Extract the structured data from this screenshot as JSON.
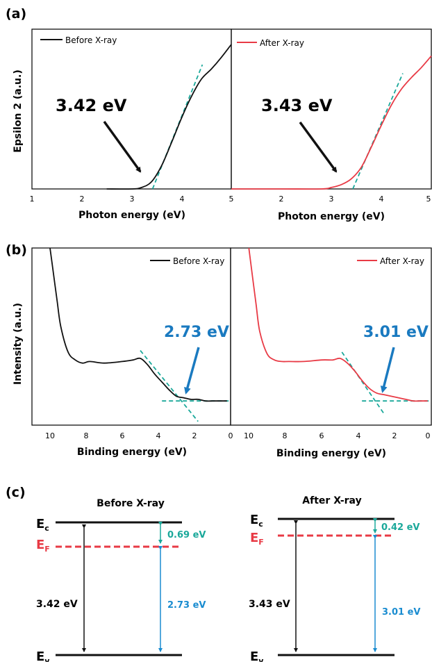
{
  "colors": {
    "before": "#111111",
    "after": "#e83a45",
    "fit_line": "#1aa89a",
    "annot_b": "#1a7ac0",
    "ef_red": "#e83a45",
    "gap_green": "#1aa89a",
    "gap_blue": "#1a8cd0"
  },
  "panels": {
    "a": {
      "label": "(a)",
      "ylabel": "Epsilon 2 (a.u.)",
      "left": {
        "legend": "Before X-ray",
        "xlabel": "Photon energy (eV)",
        "annotation": "3.42 eV",
        "ticks": [
          "1",
          "2",
          "3",
          "4",
          "5"
        ]
      },
      "right": {
        "legend": "After X-ray",
        "xlabel": "Photon energy (eV)",
        "annotation": "3.43 eV",
        "ticks": [
          "2",
          "3",
          "4",
          "5"
        ]
      }
    },
    "b": {
      "label": "(b)",
      "ylabel": "Intensity (a.u.)",
      "left": {
        "legend": "Before X-ray",
        "xlabel": "Binding energy (eV)",
        "annotation": "2.73 eV",
        "ticks": [
          "10",
          "8",
          "6",
          "4",
          "2",
          "0"
        ]
      },
      "right": {
        "legend": "After X-ray",
        "xlabel": "Binding energy (eV)",
        "annotation": "3.01 eV",
        "ticks": [
          "10",
          "8",
          "6",
          "4",
          "2",
          "0"
        ]
      }
    },
    "c": {
      "label": "(c)",
      "before": {
        "title": "Before X-ray",
        "ec": "E",
        "ec_sub": "c",
        "ef": "E",
        "ef_sub": "F",
        "ev": "E",
        "ev_sub": "v",
        "gap": "3.42 eV",
        "ec_ef": "0.69 eV",
        "ef_ev": "2.73 eV"
      },
      "after": {
        "title": "After X-ray",
        "ec": "E",
        "ec_sub": "c",
        "ef": "E",
        "ef_sub": "F",
        "ev": "E",
        "ev_sub": "v",
        "gap": "3.43 eV",
        "ec_ef": "0.42 eV",
        "ef_ev": "3.01 eV"
      }
    }
  },
  "chart_data": [
    {
      "type": "line",
      "panel": "a-left",
      "legend": "Before X-ray",
      "xlabel": "Photon energy (eV)",
      "ylabel": "Epsilon 2 (a.u.)",
      "xlim": [
        1,
        5
      ],
      "ylim": [
        0,
        1
      ],
      "y_ticks_labeled": false,
      "annotation": "3.42 eV",
      "series": [
        {
          "name": "Before X-ray",
          "color": "#111111",
          "x": [
            2.5,
            3.0,
            3.2,
            3.4,
            3.6,
            3.8,
            4.0,
            4.2,
            4.4,
            4.6,
            4.8,
            5.0
          ],
          "y": [
            0.0,
            0.0,
            0.01,
            0.05,
            0.16,
            0.32,
            0.49,
            0.64,
            0.76,
            0.83,
            0.91,
            1.0
          ]
        }
      ],
      "fit_line": {
        "x": [
          3.42,
          4.42
        ],
        "y": [
          0.0,
          0.86
        ]
      }
    },
    {
      "type": "line",
      "panel": "a-right",
      "legend": "After X-ray",
      "xlabel": "Photon energy (eV)",
      "xlim": [
        1,
        5
      ],
      "ylim": [
        0,
        1
      ],
      "annotation": "3.43 eV",
      "series": [
        {
          "name": "After X-ray",
          "color": "#e83a45",
          "x": [
            1.0,
            2.0,
            2.8,
            3.0,
            3.2,
            3.4,
            3.6,
            3.8,
            4.0,
            4.2,
            4.4,
            4.6,
            4.8,
            5.0
          ],
          "y": [
            0.0,
            0.0,
            0.0,
            0.01,
            0.03,
            0.07,
            0.15,
            0.29,
            0.44,
            0.58,
            0.69,
            0.77,
            0.84,
            0.92
          ]
        }
      ],
      "fit_line": {
        "x": [
          3.43,
          4.43
        ],
        "y": [
          0.0,
          0.8
        ]
      }
    },
    {
      "type": "line",
      "panel": "b-left",
      "legend": "Before X-ray",
      "xlabel": "Binding energy (eV)",
      "ylabel": "Intensity (a.u.)",
      "xlim": [
        11,
        0
      ],
      "ylim": [
        0,
        1
      ],
      "annotation": "2.73 eV",
      "series": [
        {
          "name": "Before X-ray",
          "color": "#111111",
          "x": [
            10.0,
            9.8,
            9.6,
            9.4,
            9.0,
            8.6,
            8.2,
            7.8,
            7.0,
            6.0,
            5.4,
            5.0,
            4.6,
            4.2,
            3.8,
            3.4,
            3.0,
            2.6,
            2.2,
            1.8,
            1.4,
            1.0,
            0.6,
            0.2
          ],
          "y": [
            1.0,
            0.83,
            0.66,
            0.5,
            0.34,
            0.29,
            0.27,
            0.28,
            0.27,
            0.28,
            0.29,
            0.3,
            0.26,
            0.2,
            0.15,
            0.1,
            0.06,
            0.05,
            0.04,
            0.04,
            0.03,
            0.03,
            0.03,
            0.03
          ]
        }
      ],
      "fit_lines": [
        {
          "x": [
            5.0,
            1.8
          ],
          "y": [
            0.35,
            -0.1
          ]
        },
        {
          "x": [
            3.8,
            0.1
          ],
          "y": [
            0.03,
            0.03
          ]
        }
      ]
    },
    {
      "type": "line",
      "panel": "b-right",
      "legend": "After X-ray",
      "xlabel": "Binding energy (eV)",
      "xlim": [
        11,
        0
      ],
      "ylim": [
        0,
        1
      ],
      "annotation": "3.01 eV",
      "series": [
        {
          "name": "After X-ray",
          "color": "#e83a45",
          "x": [
            10.0,
            9.8,
            9.6,
            9.4,
            9.0,
            8.6,
            8.2,
            7.8,
            7.0,
            6.0,
            5.4,
            5.0,
            4.6,
            4.2,
            3.8,
            3.4,
            3.0,
            2.6,
            2.2,
            1.8,
            1.4,
            1.0,
            0.6,
            0.2
          ],
          "y": [
            1.0,
            0.82,
            0.64,
            0.47,
            0.33,
            0.29,
            0.28,
            0.28,
            0.28,
            0.29,
            0.29,
            0.3,
            0.27,
            0.22,
            0.16,
            0.11,
            0.08,
            0.07,
            0.06,
            0.05,
            0.04,
            0.03,
            0.03,
            0.03
          ]
        }
      ],
      "fit_lines": [
        {
          "x": [
            4.9,
            2.6
          ],
          "y": [
            0.34,
            -0.05
          ]
        },
        {
          "x": [
            3.8,
            0.1
          ],
          "y": [
            0.03,
            0.03
          ]
        }
      ]
    },
    {
      "type": "diagram",
      "panel": "c",
      "levels": [
        {
          "title": "Before X-ray",
          "Eg": "3.42 eV",
          "Ec-EF": "0.69 eV",
          "EF-Ev": "2.73 eV"
        },
        {
          "title": "After X-ray",
          "Eg": "3.43 eV",
          "Ec-EF": "0.42 eV",
          "EF-Ev": "3.01 eV"
        }
      ]
    }
  ]
}
